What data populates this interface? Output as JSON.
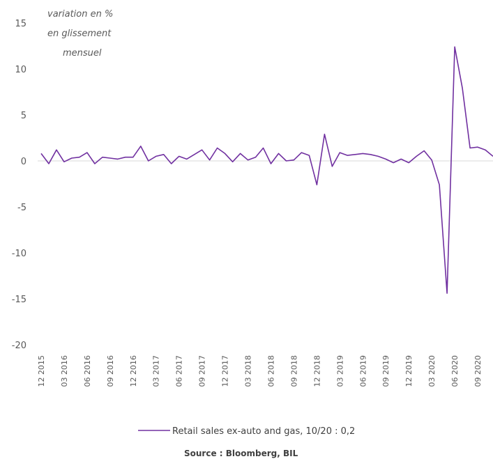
{
  "chart_data": {
    "type": "line",
    "annotation_lines": [
      "variation en %",
      "en glissement",
      "mensuel"
    ],
    "ylim": [
      -20,
      15
    ],
    "yticks": [
      15,
      10,
      5,
      0,
      -5,
      -10,
      -15,
      -20
    ],
    "xtick_labels": [
      "12 2015",
      "03 2016",
      "06 2016",
      "09 2016",
      "12 2016",
      "03 2017",
      "06 2017",
      "09 2017",
      "12 2017",
      "03 2018",
      "06 2018",
      "09 2018",
      "12 2018",
      "03 2019",
      "06 2019",
      "09 2019",
      "12 2019",
      "03 2020",
      "06 2020",
      "09 2020"
    ],
    "series": [
      {
        "name": "Retail sales ex-auto and gas, 10/20 : 0,2",
        "color": "#7030A0",
        "values": [
          0.8,
          -0.3,
          1.2,
          -0.1,
          0.3,
          0.4,
          0.9,
          -0.3,
          0.4,
          0.3,
          0.2,
          0.4,
          0.4,
          1.6,
          0.0,
          0.5,
          0.7,
          -0.3,
          0.5,
          0.2,
          0.7,
          1.2,
          0.1,
          1.4,
          0.8,
          -0.1,
          0.8,
          0.1,
          0.4,
          1.4,
          -0.3,
          0.8,
          0.0,
          0.1,
          0.9,
          0.6,
          -2.6,
          2.9,
          -0.6,
          0.9,
          0.6,
          0.7,
          0.8,
          0.7,
          0.5,
          0.2,
          -0.2,
          0.2,
          -0.2,
          0.5,
          1.1,
          0.1,
          -2.6,
          -14.4,
          12.4,
          7.9,
          1.4,
          1.5,
          1.2,
          0.5
        ]
      }
    ]
  },
  "source": "Source : Bloomberg, BIL"
}
